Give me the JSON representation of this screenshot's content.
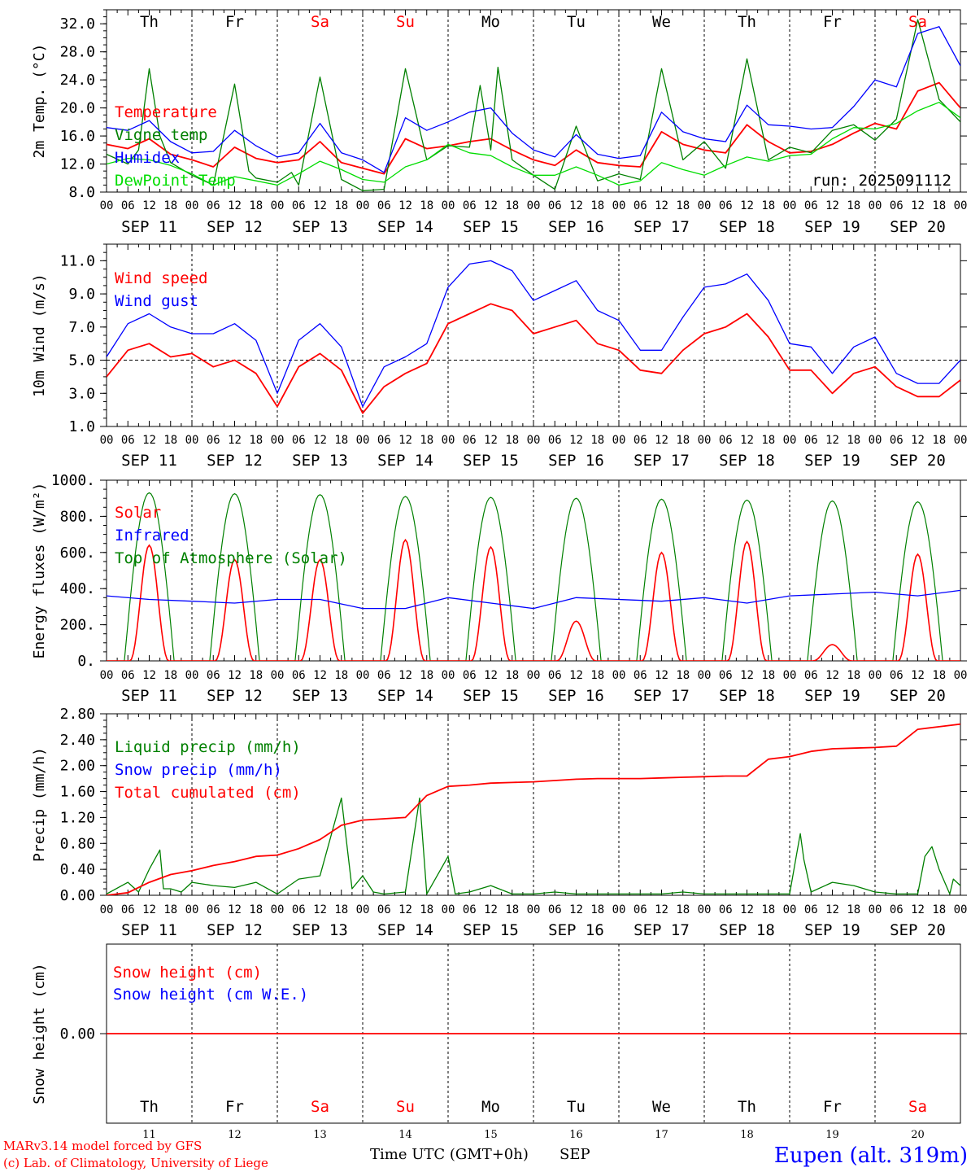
{
  "colors": {
    "red": "#ff0000",
    "green": "#008000",
    "blue": "#0000ff",
    "lightgreen": "#00dd00",
    "black": "#000000",
    "weekend": "#ff0000"
  },
  "day_names": [
    "Th",
    "Fr",
    "Sa",
    "Su",
    "Mo",
    "Tu",
    "We",
    "Th",
    "Fr",
    "Sa"
  ],
  "day_is_weekend": [
    false,
    false,
    true,
    true,
    false,
    false,
    false,
    false,
    false,
    true
  ],
  "date_labels": [
    "SEP 11",
    "SEP 12",
    "SEP 13",
    "SEP 14",
    "SEP 15",
    "SEP 16",
    "SEP 17",
    "SEP 18",
    "SEP 19",
    "SEP 20"
  ],
  "day_numbers": [
    "11",
    "12",
    "13",
    "14",
    "15",
    "16",
    "17",
    "18",
    "19",
    "20"
  ],
  "hour_ticks": [
    "00",
    "06",
    "12",
    "18"
  ],
  "hour_tick_end": "00",
  "footer": {
    "model": "MARv3.14 model forced by GFS",
    "copyright": "(c) Lab. of Climatology, University of Liege",
    "xlabel": "Time UTC (GMT+0h)",
    "month": "SEP",
    "station": "Eupen (alt. 319m)"
  },
  "chart_data": [
    {
      "type": "line",
      "ylabel": "2m Temp. (°C)",
      "ylim": [
        8,
        34
      ],
      "yticks": [
        "8.0",
        "12.0",
        "16.0",
        "20.0",
        "24.0",
        "28.0",
        "32.0"
      ],
      "run_label": "run: 2025091112",
      "x_unit": "hours since 2025-09-11 00 UTC",
      "legend": [
        {
          "label": "Temperature",
          "color": "#ff0000"
        },
        {
          "label": "Vigne temp",
          "color": "#008000"
        },
        {
          "label": "Humidex",
          "color": "#0000ff"
        },
        {
          "label": "DewPoint Temp",
          "color": "#00dd00"
        }
      ],
      "series": [
        {
          "name": "Temperature",
          "color": "#ff0000",
          "x": [
            0,
            6,
            12,
            18,
            24,
            30,
            36,
            42,
            48,
            54,
            60,
            66,
            72,
            78,
            84,
            90,
            96,
            102,
            108,
            114,
            120,
            126,
            132,
            138,
            144,
            150,
            156,
            162,
            168,
            174,
            180,
            186,
            192,
            198,
            204,
            210,
            216,
            222,
            228,
            234,
            240
          ],
          "y": [
            14.8,
            14.2,
            15.6,
            13.4,
            12.6,
            11.6,
            14.4,
            12.8,
            12.2,
            12.6,
            15.2,
            12.2,
            11.4,
            10.6,
            15.6,
            14.2,
            14.6,
            15.2,
            15.6,
            14.0,
            12.6,
            11.8,
            14.0,
            12.2,
            11.8,
            11.6,
            16.6,
            14.8,
            14.0,
            13.6,
            17.6,
            15.2,
            13.6,
            13.8,
            14.8,
            16.4,
            17.8,
            17.0,
            22.4,
            23.6,
            20.0
          ]
        },
        {
          "name": "Vigne temp",
          "color": "#008000",
          "x": [
            0,
            6,
            9,
            12,
            15,
            18,
            24,
            30,
            36,
            40,
            42,
            48,
            52,
            54,
            60,
            66,
            72,
            78,
            84,
            90,
            96,
            102,
            105,
            108,
            110,
            114,
            120,
            126,
            132,
            138,
            144,
            150,
            156,
            162,
            168,
            174,
            180,
            186,
            192,
            198,
            204,
            210,
            216,
            222,
            228,
            234,
            240
          ],
          "y": [
            13.4,
            12.0,
            14.0,
            25.6,
            16.0,
            12.2,
            10.4,
            9.0,
            23.4,
            11.0,
            10.0,
            9.4,
            10.8,
            9.0,
            24.4,
            9.8,
            8.2,
            8.4,
            25.6,
            12.6,
            14.6,
            14.4,
            23.2,
            14.0,
            25.8,
            12.6,
            10.4,
            8.4,
            17.4,
            9.6,
            10.6,
            9.8,
            25.6,
            12.6,
            15.2,
            11.4,
            27.0,
            12.6,
            14.4,
            13.6,
            16.8,
            17.6,
            15.4,
            18.4,
            32.6,
            21.2,
            18.0
          ]
        },
        {
          "name": "Humidex",
          "color": "#0000ff",
          "x": [
            0,
            6,
            12,
            18,
            24,
            30,
            36,
            42,
            48,
            54,
            60,
            66,
            72,
            78,
            84,
            90,
            96,
            102,
            108,
            114,
            120,
            126,
            132,
            138,
            144,
            150,
            156,
            162,
            168,
            174,
            180,
            186,
            192,
            198,
            204,
            210,
            216,
            222,
            228,
            234,
            240
          ],
          "y": [
            17.2,
            16.8,
            18.2,
            15.2,
            13.6,
            13.8,
            16.8,
            14.6,
            13.0,
            13.6,
            17.8,
            13.6,
            12.6,
            10.8,
            18.6,
            16.8,
            18.0,
            19.4,
            20.0,
            16.4,
            14.0,
            13.0,
            16.2,
            13.4,
            12.8,
            13.2,
            19.4,
            16.6,
            15.6,
            15.2,
            20.4,
            17.6,
            17.4,
            17.0,
            17.2,
            20.2,
            24.0,
            23.0,
            30.6,
            31.6,
            26.0
          ]
        },
        {
          "name": "DewPoint Temp",
          "color": "#00dd00",
          "x": [
            0,
            6,
            12,
            18,
            24,
            30,
            36,
            42,
            48,
            54,
            60,
            66,
            72,
            78,
            84,
            90,
            96,
            102,
            108,
            114,
            120,
            126,
            132,
            138,
            144,
            150,
            156,
            162,
            168,
            174,
            180,
            186,
            192,
            198,
            204,
            210,
            216,
            222,
            228,
            234,
            240
          ],
          "y": [
            12.0,
            12.8,
            12.6,
            11.8,
            10.6,
            9.0,
            10.2,
            9.6,
            9.0,
            10.6,
            12.4,
            11.2,
            9.8,
            9.4,
            11.6,
            12.6,
            14.8,
            13.6,
            13.2,
            11.6,
            10.4,
            10.4,
            11.6,
            10.4,
            9.0,
            9.6,
            12.2,
            11.2,
            10.4,
            11.8,
            13.0,
            12.4,
            13.2,
            13.4,
            15.6,
            17.2,
            17.0,
            17.8,
            19.6,
            20.8,
            18.6
          ]
        }
      ]
    },
    {
      "type": "line",
      "ylabel": "10m Wind (m/s)",
      "ylim": [
        1,
        12
      ],
      "yticks": [
        "1.0",
        "3.0",
        "5.0",
        "7.0",
        "9.0",
        "11.0"
      ],
      "reference_line": 5.0,
      "legend": [
        {
          "label": "Wind speed",
          "color": "#ff0000"
        },
        {
          "label": "Wind gust",
          "color": "#0000ff"
        }
      ],
      "series": [
        {
          "name": "Wind speed",
          "color": "#ff0000",
          "x": [
            0,
            6,
            12,
            18,
            24,
            30,
            36,
            42,
            48,
            54,
            60,
            66,
            72,
            78,
            84,
            90,
            96,
            102,
            108,
            114,
            120,
            126,
            132,
            138,
            144,
            150,
            156,
            162,
            168,
            174,
            180,
            186,
            192,
            198,
            204,
            210,
            216,
            222,
            228,
            234,
            240
          ],
          "y": [
            4.0,
            5.6,
            6.0,
            5.2,
            5.4,
            4.6,
            5.0,
            4.2,
            2.2,
            4.6,
            5.4,
            4.4,
            1.8,
            3.4,
            4.2,
            4.8,
            7.2,
            7.8,
            8.4,
            8.0,
            6.6,
            7.0,
            7.4,
            6.0,
            5.6,
            4.4,
            4.2,
            5.6,
            6.6,
            7.0,
            7.8,
            6.4,
            4.4,
            4.4,
            3.0,
            4.2,
            4.6,
            3.4,
            2.8,
            2.8,
            3.8
          ]
        },
        {
          "name": "Wind gust",
          "color": "#0000ff",
          "x": [
            0,
            6,
            12,
            18,
            24,
            30,
            36,
            42,
            48,
            54,
            60,
            66,
            72,
            78,
            84,
            90,
            96,
            102,
            108,
            114,
            120,
            126,
            132,
            138,
            144,
            150,
            156,
            162,
            168,
            174,
            180,
            186,
            192,
            198,
            204,
            210,
            216,
            222,
            228,
            234,
            240
          ],
          "y": [
            5.2,
            7.2,
            7.8,
            7.0,
            6.6,
            6.6,
            7.2,
            6.2,
            3.0,
            6.2,
            7.2,
            5.8,
            2.2,
            4.6,
            5.2,
            6.0,
            9.4,
            10.8,
            11.0,
            10.4,
            8.6,
            9.2,
            9.8,
            8.0,
            7.4,
            5.6,
            5.6,
            7.6,
            9.4,
            9.6,
            10.2,
            8.6,
            6.0,
            5.8,
            4.2,
            5.8,
            6.4,
            4.2,
            3.6,
            3.6,
            5.0
          ]
        }
      ]
    },
    {
      "type": "line",
      "ylabel": "Energy fluxes (W/m²)",
      "ylim": [
        0,
        1000
      ],
      "yticks": [
        "0.",
        "200.",
        "400.",
        "600.",
        "800.",
        "1000."
      ],
      "legend": [
        {
          "label": "Solar",
          "color": "#ff0000"
        },
        {
          "label": "Infrared",
          "color": "#0000ff"
        },
        {
          "label": "Top of Atmosphere (Solar)",
          "color": "#008000"
        }
      ],
      "toa_daily_max": [
        930,
        925,
        920,
        910,
        905,
        900,
        895,
        890,
        885,
        880
      ],
      "solar_daily_max": [
        640,
        560,
        560,
        670,
        630,
        220,
        600,
        660,
        90,
        590
      ],
      "series": [
        {
          "name": "Infrared",
          "color": "#0000ff",
          "x": [
            0,
            12,
            24,
            36,
            48,
            60,
            72,
            84,
            96,
            108,
            120,
            132,
            144,
            156,
            168,
            180,
            192,
            204,
            216,
            228,
            240
          ],
          "y": [
            360,
            340,
            330,
            320,
            340,
            340,
            290,
            290,
            350,
            320,
            290,
            350,
            340,
            330,
            350,
            320,
            360,
            370,
            380,
            360,
            390
          ]
        }
      ]
    },
    {
      "type": "line",
      "ylabel": "Precip (mm/h)",
      "ylim": [
        0,
        2.8
      ],
      "yticks": [
        "0.00",
        "0.40",
        "0.80",
        "1.20",
        "1.60",
        "2.00",
        "2.40",
        "2.80"
      ],
      "legend": [
        {
          "label": "Liquid precip (mm/h)",
          "color": "#008000"
        },
        {
          "label": "Snow precip (mm/h)",
          "color": "#0000ff"
        },
        {
          "label": "Total cumulated (cm)",
          "color": "#ff0000"
        }
      ],
      "series": [
        {
          "name": "Liquid precip (mm/h)",
          "color": "#008000",
          "x": [
            0,
            6,
            9,
            12,
            15,
            16,
            18,
            21,
            24,
            30,
            36,
            42,
            48,
            54,
            60,
            66,
            69,
            72,
            75,
            78,
            84,
            88,
            90,
            96,
            98,
            102,
            108,
            114,
            120,
            126,
            132,
            138,
            144,
            150,
            156,
            162,
            168,
            174,
            180,
            186,
            192,
            194,
            195,
            196,
            198,
            204,
            210,
            216,
            222,
            228,
            230,
            232,
            234,
            237,
            238,
            240
          ],
          "y": [
            0.02,
            0.2,
            0.05,
            0.4,
            0.7,
            0.1,
            0.1,
            0.05,
            0.2,
            0.15,
            0.12,
            0.2,
            0.02,
            0.25,
            0.3,
            1.5,
            0.1,
            0.3,
            0.05,
            0.02,
            0.05,
            1.5,
            0.02,
            0.6,
            0.02,
            0.05,
            0.15,
            0.02,
            0.02,
            0.05,
            0.02,
            0.02,
            0.02,
            0.02,
            0.02,
            0.05,
            0.02,
            0.02,
            0.02,
            0.02,
            0.02,
            0.65,
            0.95,
            0.55,
            0.05,
            0.2,
            0.15,
            0.05,
            0.02,
            0.02,
            0.6,
            0.75,
            0.4,
            0.02,
            0.25,
            0.15
          ]
        },
        {
          "name": "Total cumulated (cm)",
          "color": "#ff0000",
          "x": [
            0,
            6,
            12,
            18,
            24,
            30,
            36,
            42,
            48,
            54,
            60,
            66,
            72,
            78,
            84,
            90,
            96,
            102,
            108,
            114,
            120,
            126,
            132,
            138,
            144,
            150,
            156,
            162,
            168,
            174,
            180,
            186,
            192,
            198,
            204,
            210,
            216,
            222,
            228,
            234,
            240
          ],
          "y": [
            0.0,
            0.04,
            0.2,
            0.32,
            0.38,
            0.46,
            0.52,
            0.6,
            0.62,
            0.72,
            0.86,
            1.08,
            1.16,
            1.18,
            1.2,
            1.54,
            1.68,
            1.7,
            1.73,
            1.74,
            1.75,
            1.77,
            1.79,
            1.8,
            1.8,
            1.8,
            1.81,
            1.82,
            1.83,
            1.84,
            1.84,
            2.1,
            2.14,
            2.22,
            2.26,
            2.27,
            2.28,
            2.3,
            2.56,
            2.6,
            2.64
          ]
        }
      ]
    },
    {
      "type": "line",
      "ylabel": "Snow height (cm)",
      "yticks": [
        "0.00"
      ],
      "legend": [
        {
          "label": "Snow height (cm)",
          "color": "#ff0000"
        },
        {
          "label": "Snow height (cm W.E.)",
          "color": "#0000ff"
        }
      ],
      "series": [
        {
          "name": "Snow height (cm)",
          "color": "#ff0000",
          "x": [
            0,
            240
          ],
          "y": [
            0,
            0
          ]
        }
      ]
    }
  ]
}
